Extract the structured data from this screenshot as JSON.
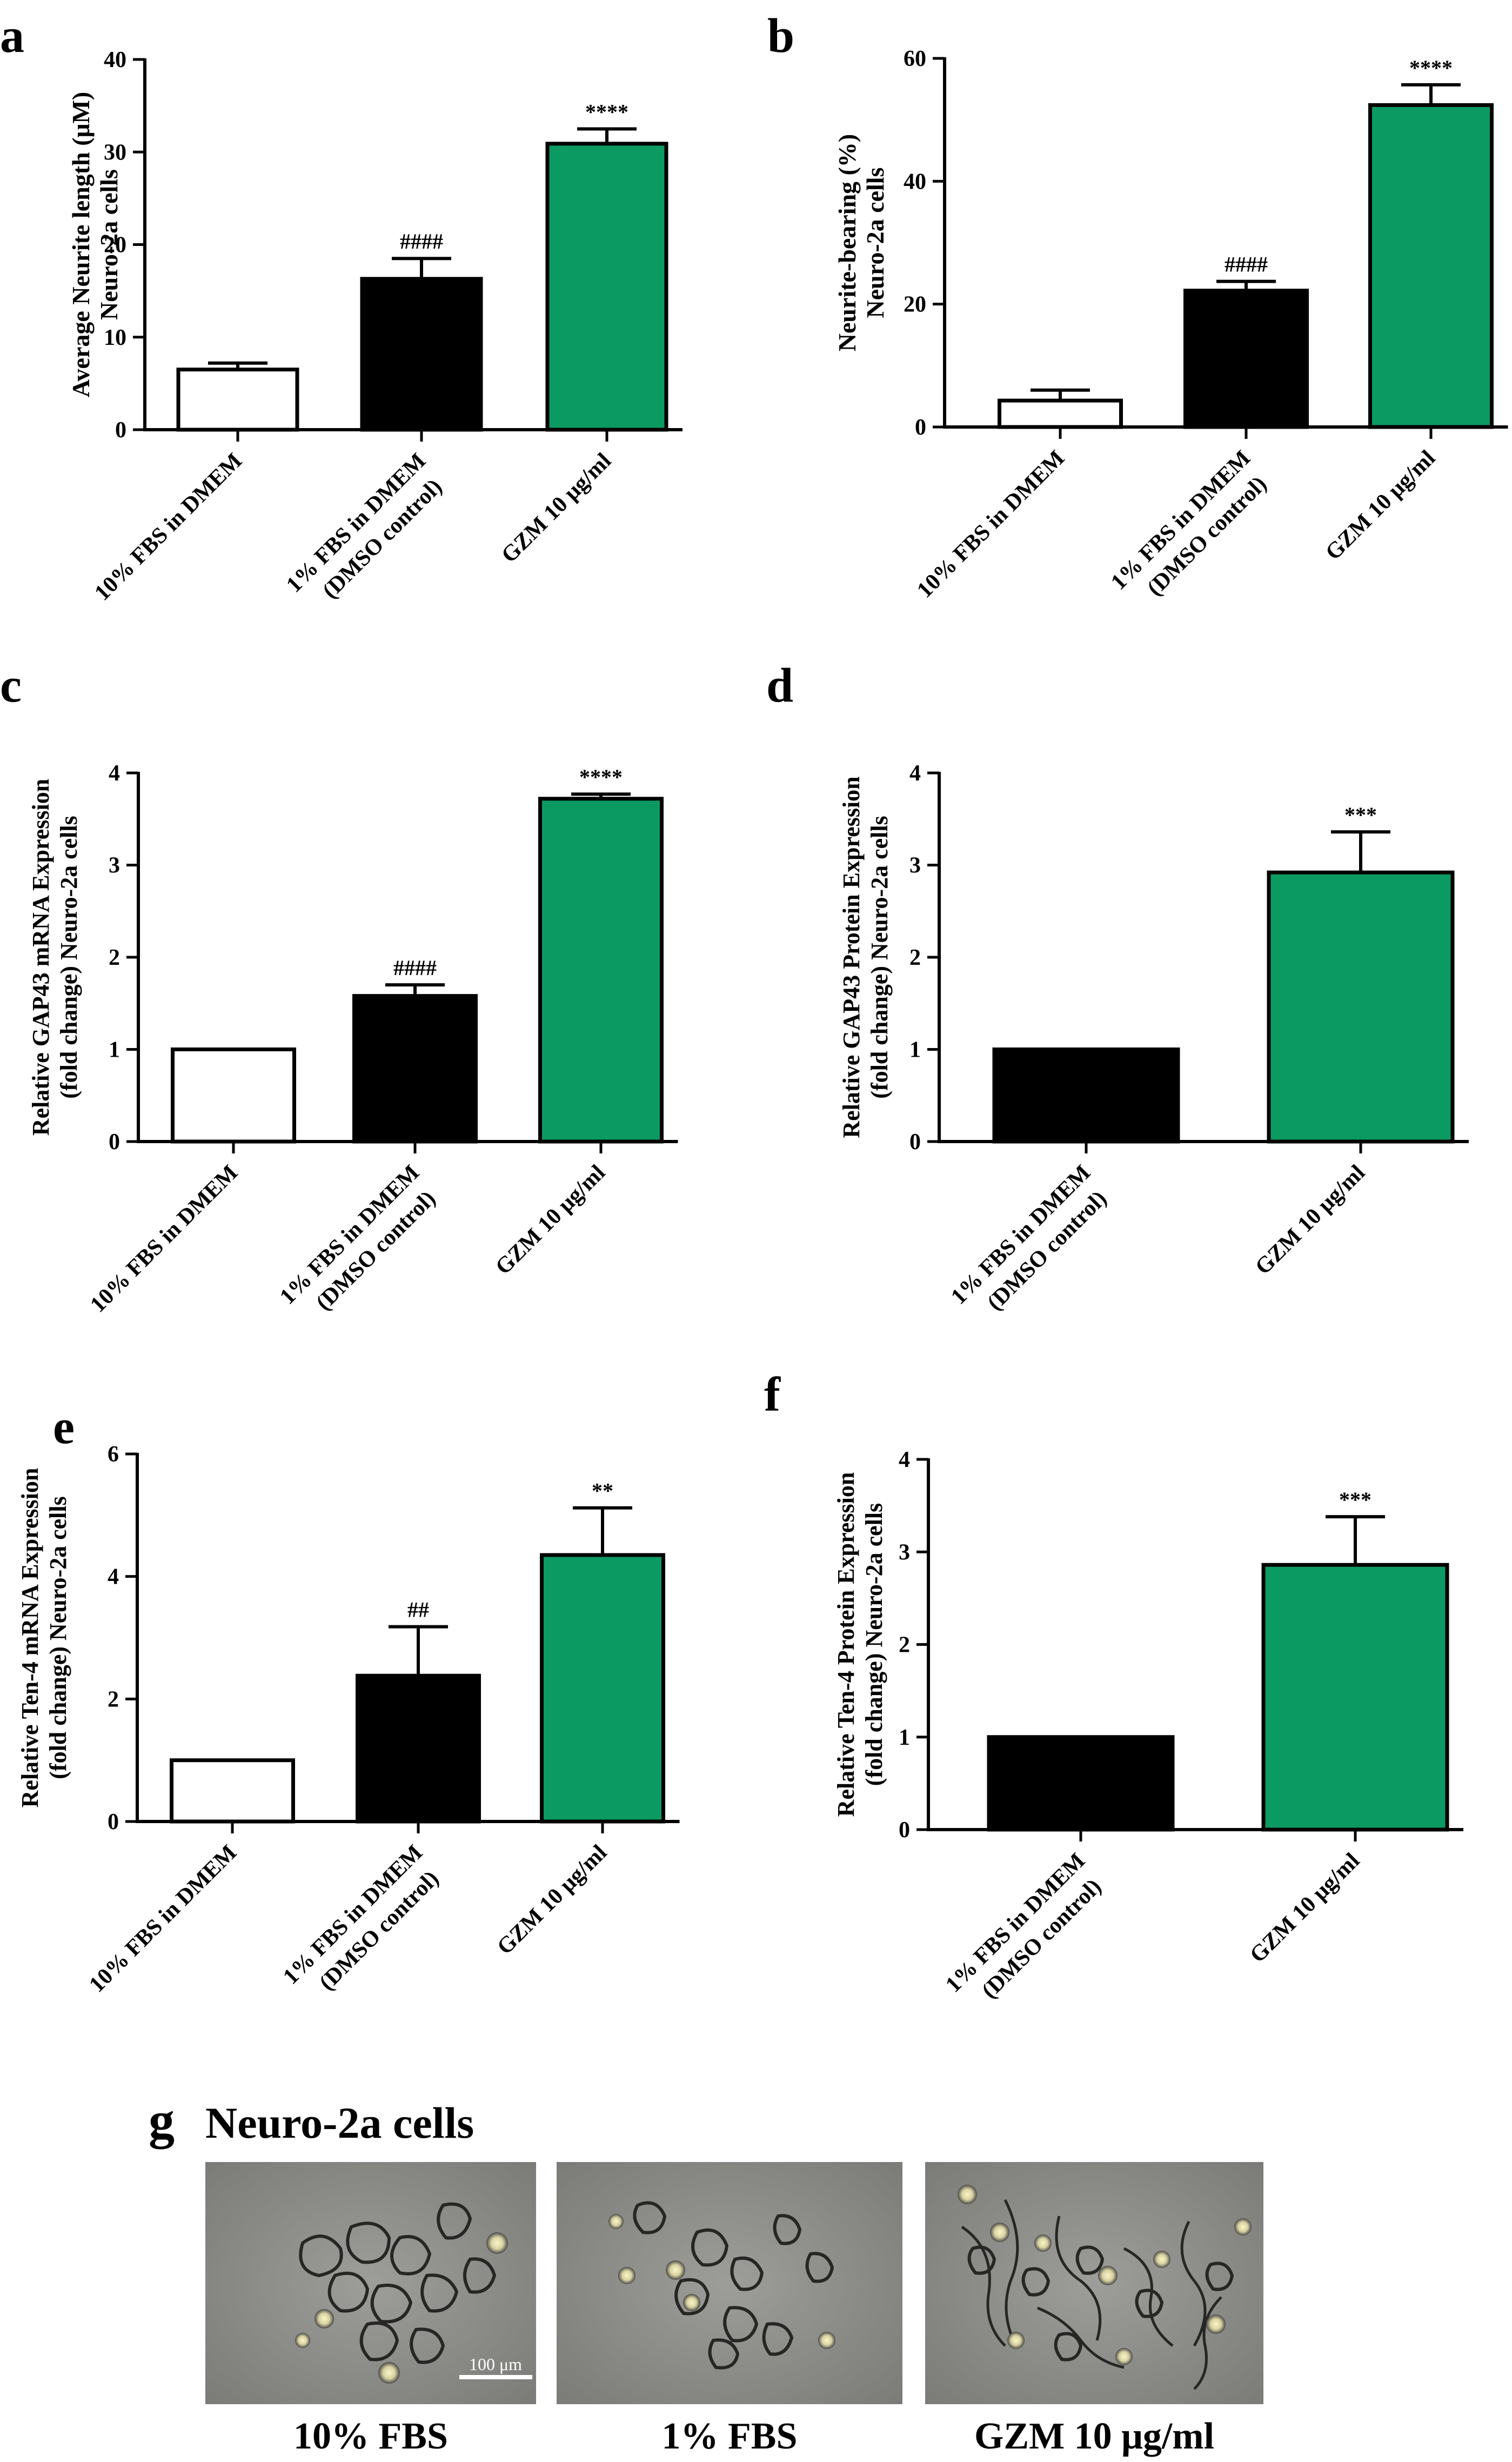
{
  "colors": {
    "white_bar": "#ffffff",
    "black_bar": "#000000",
    "green_bar": "#0c9a63",
    "axis": "#000000"
  },
  "chart_data": [
    {
      "panel": "a",
      "type": "bar",
      "ylabel": [
        "Average Neurite length (μM)",
        "Neuro-2a cells"
      ],
      "ylim": [
        0,
        40
      ],
      "yticks": [
        0,
        10,
        20,
        30,
        40
      ],
      "categories": [
        [
          "10% FBS in DMEM"
        ],
        [
          "1% FBS in DMEM",
          "(DMSO control)"
        ],
        [
          "GZM 10 μg/ml"
        ]
      ],
      "values": [
        6.5,
        16.3,
        30.9
      ],
      "errors": [
        0.7,
        2.2,
        1.6
      ],
      "fills": [
        "white_bar",
        "black_bar",
        "green_bar"
      ],
      "annotations": [
        "",
        "####",
        "****"
      ]
    },
    {
      "panel": "b",
      "type": "bar",
      "ylabel": [
        "Neurite-bearing (%)",
        "Neuro-2a cells"
      ],
      "ylim": [
        0,
        60
      ],
      "yticks": [
        0,
        20,
        40,
        60
      ],
      "categories": [
        [
          "10% FBS in DMEM"
        ],
        [
          "1% FBS in DMEM",
          "(DMSO control)"
        ],
        [
          "GZM 10 μg/ml"
        ]
      ],
      "values": [
        4.3,
        22.2,
        52.4
      ],
      "errors": [
        1.7,
        1.5,
        3.3
      ],
      "fills": [
        "white_bar",
        "black_bar",
        "green_bar"
      ],
      "annotations": [
        "",
        "####",
        "****"
      ]
    },
    {
      "panel": "c",
      "type": "bar",
      "ylabel": [
        "Relative GAP43 mRNA Expression",
        "(fold change) Neuro-2a cells"
      ],
      "ylim": [
        0,
        4
      ],
      "yticks": [
        0,
        1,
        2,
        3,
        4
      ],
      "categories": [
        [
          "10% FBS in DMEM"
        ],
        [
          "1% FBS in DMEM",
          "(DMSO control)"
        ],
        [
          "GZM 10 μg/ml"
        ]
      ],
      "values": [
        1.0,
        1.58,
        3.72
      ],
      "errors": [
        0,
        0.12,
        0.05
      ],
      "fills": [
        "white_bar",
        "black_bar",
        "green_bar"
      ],
      "annotations": [
        "",
        "####",
        "****"
      ]
    },
    {
      "panel": "d",
      "type": "bar",
      "ylabel": [
        "Relative GAP43 Protein Expression",
        "(fold change) Neuro-2a cells"
      ],
      "ylim": [
        0,
        4
      ],
      "yticks": [
        0,
        1,
        2,
        3,
        4
      ],
      "categories": [
        [
          "1% FBS in DMEM",
          "(DMSO control)"
        ],
        [
          "GZM 10 μg/ml"
        ]
      ],
      "values": [
        1.0,
        2.92
      ],
      "errors": [
        0,
        0.44
      ],
      "fills": [
        "black_bar",
        "green_bar"
      ],
      "annotations": [
        "",
        "***"
      ]
    },
    {
      "panel": "e",
      "type": "bar",
      "ylabel": [
        "Relative Ten-4 mRNA Expression",
        "(fold change) Neuro-2a cells"
      ],
      "ylim": [
        0,
        6
      ],
      "yticks": [
        0,
        2,
        4,
        6
      ],
      "categories": [
        [
          "10% FBS in DMEM"
        ],
        [
          "1% FBS in DMEM",
          "(DMSO control)"
        ],
        [
          "GZM 10 μg/ml"
        ]
      ],
      "values": [
        1.0,
        2.38,
        4.35
      ],
      "errors": [
        0,
        0.8,
        0.77
      ],
      "fills": [
        "white_bar",
        "black_bar",
        "green_bar"
      ],
      "annotations": [
        "",
        "##",
        "**"
      ]
    },
    {
      "panel": "f",
      "type": "bar",
      "ylabel": [
        "Relative Ten-4 Protein Expression",
        "(fold change) Neuro-2a cells"
      ],
      "ylim": [
        0,
        4
      ],
      "yticks": [
        0,
        1,
        2,
        3,
        4
      ],
      "categories": [
        [
          "1% FBS in DMEM",
          "(DMSO control)"
        ],
        [
          "GZM 10 μg/ml"
        ]
      ],
      "values": [
        1.0,
        2.86
      ],
      "errors": [
        0,
        0.52
      ],
      "fills": [
        "black_bar",
        "green_bar"
      ],
      "annotations": [
        "",
        "***"
      ]
    }
  ],
  "panel_g": {
    "letter": "g",
    "title": "Neuro-2a cells",
    "scale_bar": "100 μm",
    "captions": [
      "10% FBS",
      "1% FBS",
      "GZM 10 μg/ml"
    ]
  }
}
